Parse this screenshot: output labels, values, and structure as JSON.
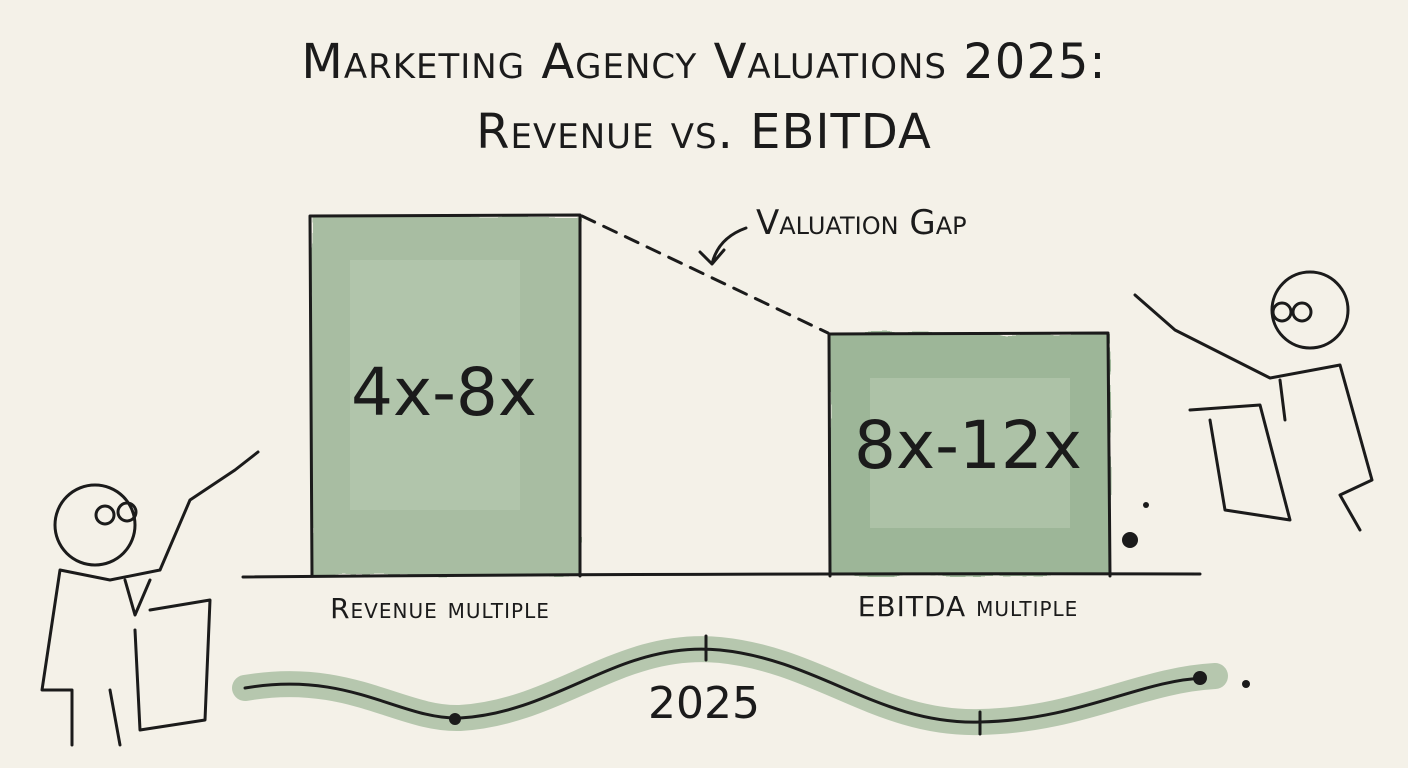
{
  "title": {
    "line1": "Marketing Agency Valuations 2025:",
    "line2": "Revenue vs. EBITDA"
  },
  "bars": [
    {
      "range": "4x-8x",
      "label": "Revenue multiple"
    },
    {
      "range": "8x-12x",
      "label": "EBITDA multiple"
    }
  ],
  "annotation": "Valuation Gap",
  "timeline": {
    "label": "2025"
  }
}
